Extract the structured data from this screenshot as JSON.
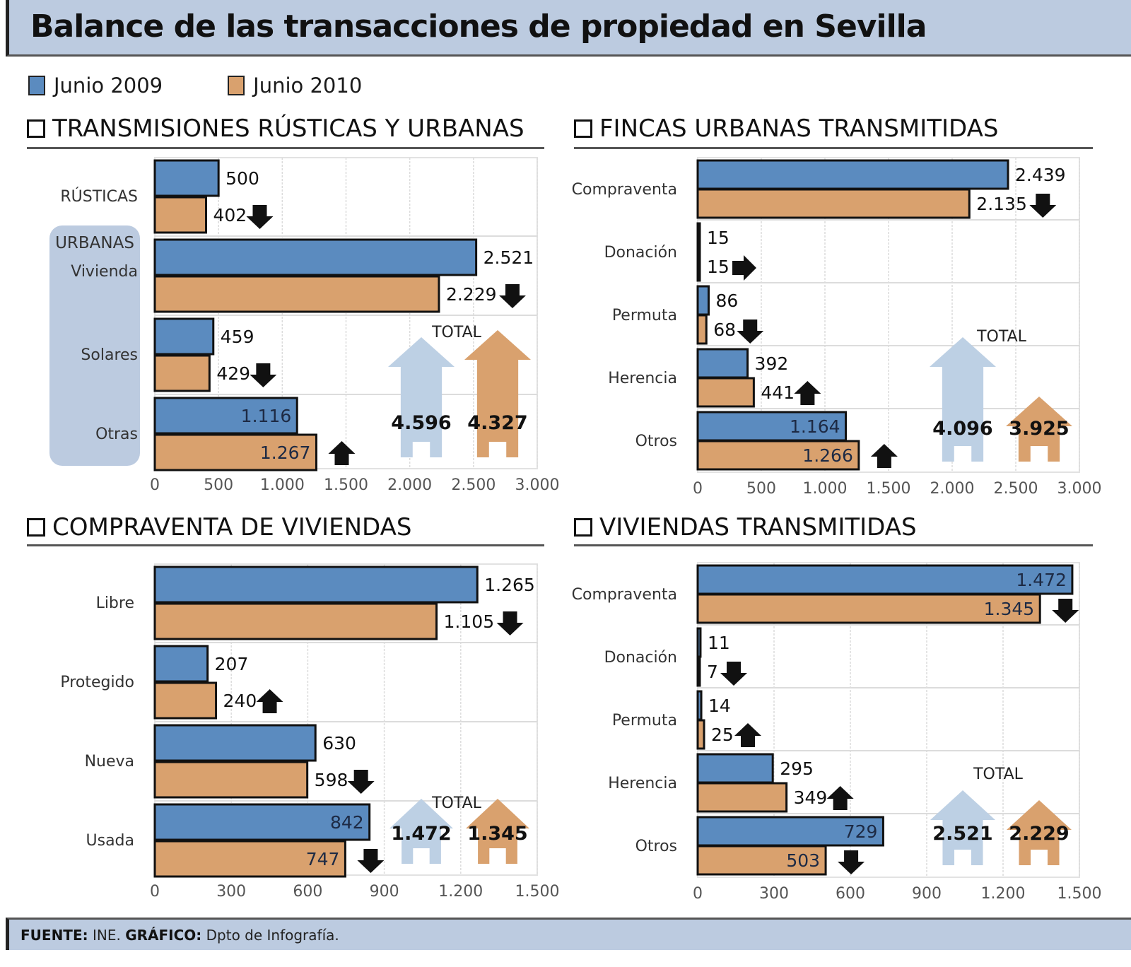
{
  "title": "Balance de las transacciones de propiedad en Sevilla",
  "colors": {
    "s2009": "#5b8bbf",
    "s2010": "#d9a16e",
    "total2009": "#bdd0e4",
    "total2010": "#d9a16e",
    "header_bg": "#bccbe0"
  },
  "legend": [
    {
      "label": "Junio 2009",
      "color": "#5b8bbf"
    },
    {
      "label": "Junio 2010",
      "color": "#d9a16e"
    }
  ],
  "footer": {
    "source_label": "FUENTE:",
    "source_value": "INE.",
    "graphic_label": "GRÁFICO:",
    "graphic_value": "Dpto de Infografía."
  },
  "chart_data": [
    {
      "type": "bar",
      "title": "TRANSMISIONES RÚSTICAS Y URBANAS",
      "group_label": "URBANAS",
      "categories": [
        "RÚSTICAS",
        "Vivienda",
        "Solares",
        "Otras"
      ],
      "series": [
        {
          "name": "Junio 2009",
          "values": [
            500,
            2521,
            459,
            1116
          ],
          "labels": [
            "500",
            "2.521",
            "459",
            "1.116"
          ]
        },
        {
          "name": "Junio 2010",
          "values": [
            402,
            2229,
            429,
            1267
          ],
          "labels": [
            "402",
            "2.229",
            "429",
            "1.267"
          ]
        }
      ],
      "trend": [
        "down",
        "down",
        "down",
        "up"
      ],
      "xlim": [
        0,
        3000
      ],
      "ticks": [
        "0",
        "500",
        "1.000",
        "1.500",
        "2.000",
        "2.500",
        "3.000"
      ],
      "total": {
        "label": "TOTAL",
        "v2009": "4.596",
        "v2010": "4.327"
      }
    },
    {
      "type": "bar",
      "title": "FINCAS URBANAS TRANSMITIDAS",
      "categories": [
        "Compraventa",
        "Donación",
        "Permuta",
        "Herencia",
        "Otros"
      ],
      "series": [
        {
          "name": "Junio 2009",
          "values": [
            2439,
            15,
            86,
            392,
            1164
          ],
          "labels": [
            "2.439",
            "15",
            "86",
            "392",
            "1.164"
          ]
        },
        {
          "name": "Junio 2010",
          "values": [
            2135,
            15,
            68,
            441,
            1266
          ],
          "labels": [
            "2.135",
            "15",
            "68",
            "441",
            "1.266"
          ]
        }
      ],
      "trend": [
        "down",
        "equal",
        "down",
        "up",
        "up"
      ],
      "xlim": [
        0,
        3000
      ],
      "ticks": [
        "0",
        "500",
        "1.000",
        "1.500",
        "2.000",
        "2.500",
        "3.000"
      ],
      "total": {
        "label": "TOTAL",
        "v2009": "4.096",
        "v2010": "3.925"
      }
    },
    {
      "type": "bar",
      "title": "COMPRAVENTA DE VIVIENDAS",
      "categories": [
        "Libre",
        "Protegido",
        "Nueva",
        "Usada"
      ],
      "series": [
        {
          "name": "Junio 2009",
          "values": [
            1265,
            207,
            630,
            842
          ],
          "labels": [
            "1.265",
            "207",
            "630",
            "842"
          ]
        },
        {
          "name": "Junio 2010",
          "values": [
            1105,
            240,
            598,
            747
          ],
          "labels": [
            "1.105",
            "240",
            "598",
            "747"
          ]
        }
      ],
      "trend": [
        "down",
        "up",
        "down",
        "down"
      ],
      "xlim": [
        0,
        1500
      ],
      "ticks": [
        "0",
        "300",
        "600",
        "900",
        "1.200",
        "1.500"
      ],
      "total": {
        "label": "TOTAL",
        "v2009": "1.472",
        "v2010": "1.345"
      }
    },
    {
      "type": "bar",
      "title": "VIVIENDAS TRANSMITIDAS",
      "categories": [
        "Compraventa",
        "Donación",
        "Permuta",
        "Herencia",
        "Otros"
      ],
      "series": [
        {
          "name": "Junio 2009",
          "values": [
            1472,
            11,
            14,
            295,
            729
          ],
          "labels": [
            "1.472",
            "11",
            "14",
            "295",
            "729"
          ]
        },
        {
          "name": "Junio 2010",
          "values": [
            1345,
            7,
            25,
            349,
            503
          ],
          "labels": [
            "1.345",
            "7",
            "25",
            "349",
            "503"
          ]
        }
      ],
      "trend": [
        "down",
        "down",
        "up",
        "up",
        "down"
      ],
      "xlim": [
        0,
        1500
      ],
      "ticks": [
        "0",
        "300",
        "600",
        "900",
        "1.200",
        "1.500"
      ],
      "total": {
        "label": "TOTAL",
        "v2009": "2.521",
        "v2010": "2.229"
      }
    }
  ]
}
